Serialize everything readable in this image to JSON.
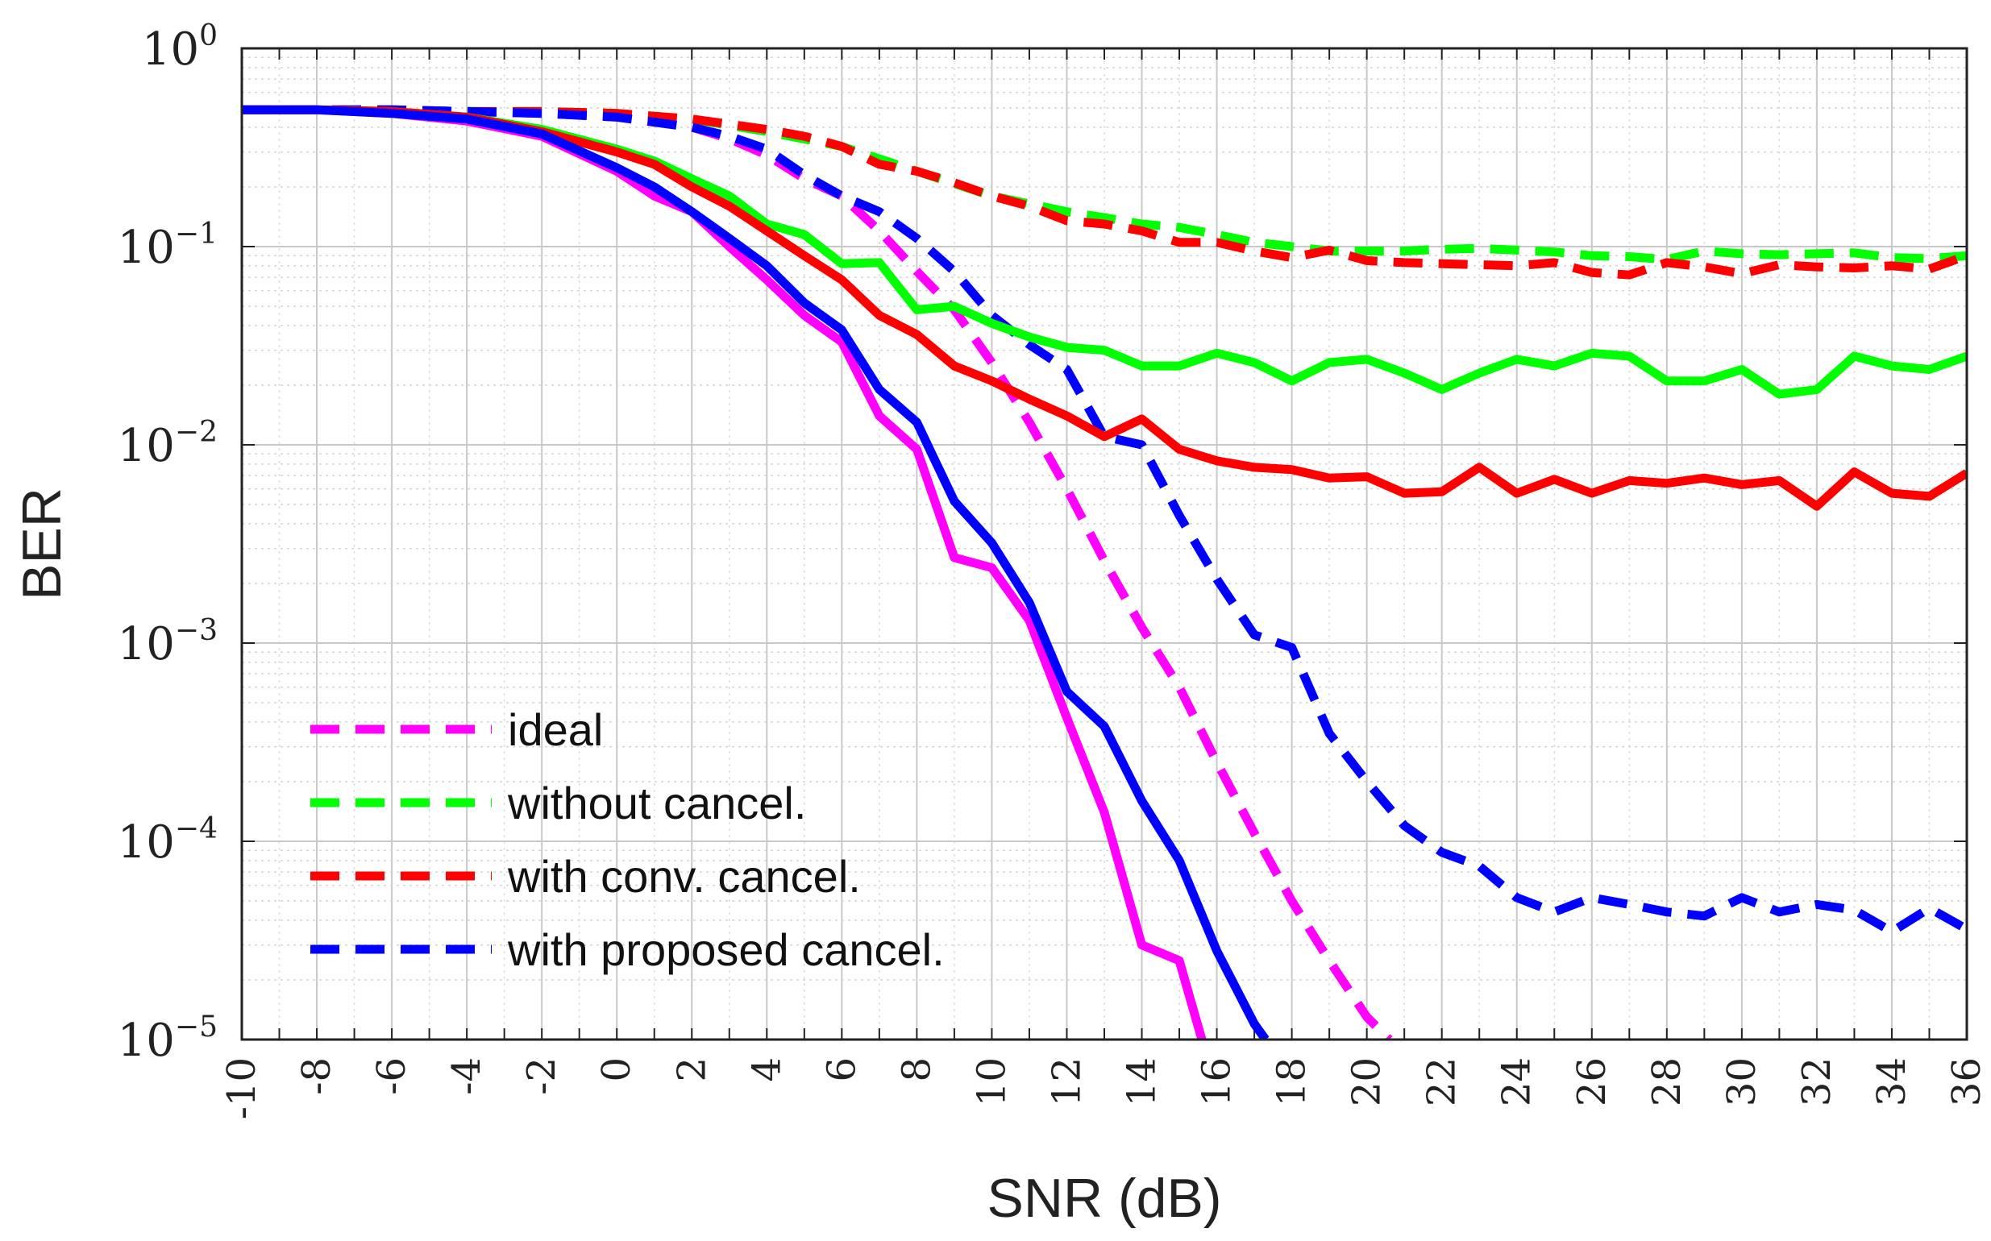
{
  "chart_data": {
    "type": "line",
    "title": "",
    "xlabel": "SNR (dB)",
    "ylabel": "BER",
    "xlim": [
      -10,
      36
    ],
    "ylim": [
      1e-05,
      1
    ],
    "yscale": "log",
    "grid": true,
    "minor_grid": true,
    "legend_position": "bottom-left",
    "x_ticks": [
      "-10",
      "-8",
      "-6",
      "-4",
      "-2",
      "0",
      "2",
      "4",
      "6",
      "8",
      "10",
      "12",
      "14",
      "16",
      "18",
      "20",
      "22",
      "24",
      "26",
      "28",
      "30",
      "32",
      "34",
      "36"
    ],
    "y_ticks": [
      {
        "base": "10",
        "exp": "0",
        "value": 1
      },
      {
        "base": "10",
        "exp": "−1",
        "value": 0.1
      },
      {
        "base": "10",
        "exp": "−2",
        "value": 0.01
      },
      {
        "base": "10",
        "exp": "−3",
        "value": 0.001
      },
      {
        "base": "10",
        "exp": "−4",
        "value": 0.0001
      },
      {
        "base": "10",
        "exp": "−5",
        "value": 1e-05
      }
    ],
    "legend": [
      {
        "label": "ideal",
        "color": "#ff00ff"
      },
      {
        "label": "without cancel.",
        "color": "#00ff00"
      },
      {
        "label": "with conv. cancel.",
        "color": "#ff0000"
      },
      {
        "label": "with proposed cancel.",
        "color": "#0000ff"
      }
    ],
    "series": [
      {
        "name": "ideal (dashed)",
        "color": "#ff00ff",
        "dash": true,
        "x": [
          -10,
          -8,
          -6,
          -4,
          -2,
          0,
          2,
          3,
          4,
          5,
          6,
          7,
          8,
          9,
          10,
          11,
          12,
          13,
          14,
          15,
          16,
          17,
          18,
          19,
          20,
          20.6
        ],
        "y": [
          0.49,
          0.49,
          0.48,
          0.48,
          0.47,
          0.45,
          0.4,
          0.35,
          0.29,
          0.22,
          0.18,
          0.12,
          0.075,
          0.048,
          0.026,
          0.013,
          0.006,
          0.0026,
          0.0012,
          0.0006,
          0.00025,
          0.00011,
          5e-05,
          2.5e-05,
          1.3e-05,
          1e-05
        ]
      },
      {
        "name": "without cancel. (dashed)",
        "color": "#00ff00",
        "dash": true,
        "x": [
          -10,
          -8,
          -6,
          -4,
          -2,
          0,
          2,
          4,
          6,
          8,
          10,
          12,
          13,
          14,
          15,
          16,
          17,
          18,
          19,
          20,
          21,
          22,
          23,
          24,
          25,
          26,
          27,
          28,
          29,
          30,
          31,
          32,
          33,
          34,
          35,
          36
        ],
        "y": [
          0.49,
          0.49,
          0.49,
          0.48,
          0.48,
          0.47,
          0.44,
          0.38,
          0.32,
          0.24,
          0.18,
          0.15,
          0.14,
          0.13,
          0.125,
          0.115,
          0.105,
          0.1,
          0.095,
          0.095,
          0.095,
          0.097,
          0.098,
          0.096,
          0.094,
          0.09,
          0.089,
          0.086,
          0.095,
          0.092,
          0.091,
          0.092,
          0.093,
          0.088,
          0.087,
          0.09
        ]
      },
      {
        "name": "with conv. cancel. (dashed)",
        "color": "#ff0000",
        "dash": true,
        "x": [
          -10,
          -8,
          -6,
          -4,
          -2,
          0,
          2,
          4,
          5,
          6,
          7,
          8,
          9,
          10,
          11,
          12,
          13,
          14,
          15,
          16,
          17,
          18,
          19,
          20,
          21,
          22,
          23,
          24,
          25,
          26,
          27,
          28,
          29,
          30,
          31,
          32,
          33,
          34,
          35,
          36
        ],
        "y": [
          0.49,
          0.49,
          0.49,
          0.48,
          0.48,
          0.47,
          0.44,
          0.39,
          0.36,
          0.32,
          0.26,
          0.24,
          0.21,
          0.18,
          0.16,
          0.135,
          0.13,
          0.12,
          0.105,
          0.105,
          0.095,
          0.088,
          0.096,
          0.085,
          0.083,
          0.082,
          0.081,
          0.08,
          0.083,
          0.074,
          0.072,
          0.083,
          0.079,
          0.073,
          0.081,
          0.079,
          0.078,
          0.08,
          0.077,
          0.09
        ]
      },
      {
        "name": "with proposed cancel. (dashed)",
        "color": "#0000ff",
        "dash": true,
        "x": [
          -10,
          -8,
          -6,
          -4,
          -2,
          0,
          2,
          3,
          4,
          5,
          6,
          7,
          8,
          9,
          10,
          11,
          12,
          13,
          14,
          15,
          16,
          17,
          18,
          19,
          20,
          21,
          22,
          23,
          24,
          25,
          26,
          27,
          28,
          29,
          30,
          31,
          32,
          33,
          34,
          35,
          36
        ],
        "y": [
          0.49,
          0.49,
          0.49,
          0.48,
          0.47,
          0.45,
          0.4,
          0.36,
          0.31,
          0.23,
          0.18,
          0.15,
          0.11,
          0.075,
          0.045,
          0.032,
          0.024,
          0.011,
          0.01,
          0.0044,
          0.0021,
          0.0011,
          0.00095,
          0.00035,
          0.0002,
          0.00012,
          8.8e-05,
          7.5e-05,
          5.2e-05,
          4.4e-05,
          5.2e-05,
          4.8e-05,
          4.4e-05,
          4.2e-05,
          5.2e-05,
          4.4e-05,
          4.8e-05,
          4.5e-05,
          3.5e-05,
          4.6e-05,
          3.6e-05
        ]
      },
      {
        "name": "ideal (solid)",
        "color": "#ff00ff",
        "dash": false,
        "x": [
          -10,
          -8,
          -6,
          -4,
          -2,
          0,
          1,
          2,
          3,
          4,
          5,
          6,
          7,
          8,
          9,
          10,
          11,
          12,
          13,
          14,
          15,
          15.6
        ],
        "y": [
          0.49,
          0.49,
          0.47,
          0.43,
          0.36,
          0.24,
          0.18,
          0.15,
          0.1,
          0.068,
          0.045,
          0.033,
          0.014,
          0.0095,
          0.0027,
          0.0024,
          0.0013,
          0.00042,
          0.00014,
          3e-05,
          2.5e-05,
          1e-05
        ]
      },
      {
        "name": "without cancel. (solid)",
        "color": "#00ff00",
        "dash": false,
        "x": [
          -10,
          -8,
          -6,
          -4,
          -2,
          0,
          1,
          2,
          3,
          4,
          5,
          6,
          7,
          8,
          9,
          10,
          11,
          12,
          13,
          14,
          15,
          16,
          17,
          18,
          19,
          20,
          21,
          22,
          23,
          24,
          25,
          26,
          27,
          28,
          29,
          30,
          31,
          32,
          33,
          34,
          35,
          36
        ],
        "y": [
          0.49,
          0.49,
          0.48,
          0.45,
          0.39,
          0.31,
          0.27,
          0.22,
          0.18,
          0.13,
          0.115,
          0.082,
          0.083,
          0.048,
          0.05,
          0.041,
          0.035,
          0.031,
          0.03,
          0.025,
          0.025,
          0.029,
          0.026,
          0.021,
          0.026,
          0.027,
          0.023,
          0.019,
          0.023,
          0.027,
          0.025,
          0.029,
          0.028,
          0.021,
          0.021,
          0.024,
          0.018,
          0.019,
          0.028,
          0.025,
          0.024,
          0.028
        ]
      },
      {
        "name": "with conv. cancel. (solid)",
        "color": "#ff0000",
        "dash": false,
        "x": [
          -10,
          -8,
          -6,
          -4,
          -2,
          0,
          1,
          2,
          3,
          4,
          5,
          6,
          7,
          8,
          9,
          10,
          11,
          12,
          13,
          14,
          15,
          16,
          17,
          18,
          19,
          20,
          21,
          22,
          23,
          24,
          25,
          26,
          27,
          28,
          29,
          30,
          31,
          32,
          33,
          34,
          35,
          36
        ],
        "y": [
          0.49,
          0.49,
          0.48,
          0.45,
          0.38,
          0.3,
          0.26,
          0.2,
          0.16,
          0.12,
          0.09,
          0.068,
          0.045,
          0.036,
          0.025,
          0.021,
          0.017,
          0.014,
          0.011,
          0.0135,
          0.0095,
          0.0083,
          0.0077,
          0.0075,
          0.0068,
          0.0069,
          0.0057,
          0.0058,
          0.0077,
          0.0057,
          0.0067,
          0.0057,
          0.0066,
          0.0064,
          0.0068,
          0.0063,
          0.0066,
          0.0049,
          0.0073,
          0.0057,
          0.0055,
          0.0072
        ]
      },
      {
        "name": "with proposed cancel. (solid)",
        "color": "#0000ff",
        "dash": false,
        "x": [
          -10,
          -8,
          -6,
          -4,
          -2,
          0,
          1,
          2,
          3,
          4,
          5,
          6,
          7,
          8,
          9,
          10,
          11,
          12,
          13,
          14,
          15,
          16,
          17,
          17.3
        ],
        "y": [
          0.49,
          0.49,
          0.47,
          0.44,
          0.37,
          0.25,
          0.2,
          0.15,
          0.11,
          0.08,
          0.052,
          0.038,
          0.019,
          0.013,
          0.0052,
          0.0032,
          0.0016,
          0.00057,
          0.00038,
          0.00016,
          8e-05,
          2.8e-05,
          1.2e-05,
          1e-05
        ]
      }
    ]
  }
}
